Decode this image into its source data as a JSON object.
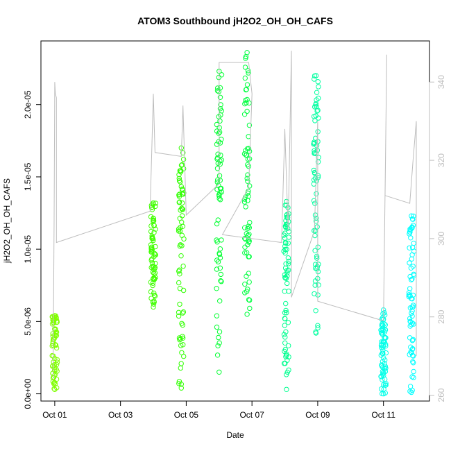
{
  "chart_data": {
    "type": "scatter",
    "title": "ATOM3 Southbound jH2O2_OH_OH_CAFS",
    "xlabel": "Date",
    "ylabel": "jH2O2_OH_OH_CAFS",
    "x_ticks": [
      "Oct 01",
      "Oct 03",
      "Oct 05",
      "Oct 07",
      "Oct 09",
      "Oct 11"
    ],
    "x_tick_values": [
      1,
      3,
      5,
      7,
      9,
      11
    ],
    "xlim": [
      0.58,
      12.4
    ],
    "y_ticks": [
      "0.0e+00",
      "5.0e-06",
      "1.0e-05",
      "1.5e-05",
      "2.0e-05"
    ],
    "y_tick_values": [
      0,
      5e-06,
      1e-05,
      1.5e-05,
      2e-05
    ],
    "ylim": [
      -5e-07,
      2.44e-05
    ],
    "y2_ticks": [
      "260",
      "280",
      "300",
      "320",
      "340"
    ],
    "y2_tick_values": [
      260,
      280,
      300,
      320,
      340
    ],
    "y2lim": [
      258.5,
      350.5
    ],
    "y2_color": "#bdbdbd",
    "grid": false,
    "marker": "open-circle",
    "series": [
      {
        "x": 1.0,
        "y_min": 3e-07,
        "y_max": 5.4e-06,
        "color": "#80ff00"
      },
      {
        "x": 4.0,
        "y_min": 6e-06,
        "y_max": 1.32e-05,
        "color": "#40ff00"
      },
      {
        "x": 4.85,
        "y_min": 4e-07,
        "y_max": 1.7e-05,
        "color": "#30ff00"
      },
      {
        "x": 6.0,
        "y_min": 1.5e-06,
        "y_max": 2.23e-05,
        "color": "#00ff30"
      },
      {
        "x": 6.85,
        "y_min": 5.5e-06,
        "y_max": 2.36e-05,
        "color": "#00ff40"
      },
      {
        "x": 8.05,
        "y_min": 3e-07,
        "y_max": 1.33e-05,
        "color": "#00ff90"
      },
      {
        "x": 8.95,
        "y_min": 4.2e-06,
        "y_max": 2.2e-05,
        "color": "#00ffa0"
      },
      {
        "x": 11.0,
        "y_min": 0.0,
        "y_max": 5.8e-06,
        "color": "#00ffe8"
      },
      {
        "x": 11.85,
        "y_min": 1e-07,
        "y_max": 1.23e-05,
        "color": "#00ffff"
      }
    ],
    "secondary_line": {
      "color": "#bdbdbd",
      "points": [
        [
          0.95,
          264
        ],
        [
          0.98,
          305
        ],
        [
          1.0,
          340
        ],
        [
          1.02,
          337
        ],
        [
          1.05,
          336
        ],
        [
          1.05,
          299
        ],
        [
          3.9,
          307
        ],
        [
          4.0,
          337
        ],
        [
          4.05,
          322
        ],
        [
          4.85,
          321
        ],
        [
          4.9,
          334
        ],
        [
          5.0,
          306
        ],
        [
          6.0,
          314
        ],
        [
          6.0,
          345
        ],
        [
          6.9,
          345
        ],
        [
          7.0,
          337
        ],
        [
          6.9,
          313
        ],
        [
          6.1,
          301
        ],
        [
          7.9,
          299
        ],
        [
          8.0,
          328
        ],
        [
          8.1,
          302
        ],
        [
          8.2,
          348
        ],
        [
          8.2,
          285
        ],
        [
          8.9,
          302
        ],
        [
          9.0,
          330
        ],
        [
          9.0,
          284
        ],
        [
          11.0,
          279
        ],
        [
          11.1,
          347
        ],
        [
          11.05,
          311
        ],
        [
          11.8,
          309
        ],
        [
          11.9,
          320
        ],
        [
          12.0,
          330
        ],
        [
          12.0,
          270
        ]
      ]
    }
  }
}
